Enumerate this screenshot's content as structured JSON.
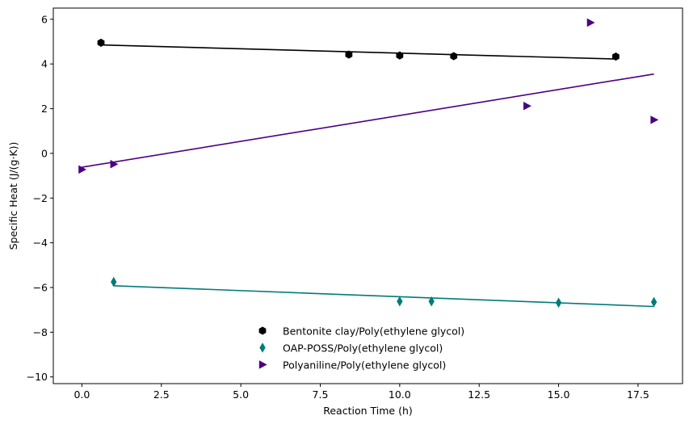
{
  "chart_data": {
    "type": "scatter",
    "title": "",
    "xlabel": "Reaction Time (h)",
    "ylabel": "Specific Heat (J/(g·K))",
    "xlim": [
      -0.9,
      18.9
    ],
    "ylim": [
      -10.3,
      6.5
    ],
    "xticks": [
      0.0,
      2.5,
      5.0,
      7.5,
      10.0,
      12.5,
      15.0,
      17.5
    ],
    "xtick_labels": [
      "0.0",
      "2.5",
      "5.0",
      "7.5",
      "10.0",
      "12.5",
      "15.0",
      "17.5"
    ],
    "yticks": [
      -10,
      -8,
      -6,
      -4,
      -2,
      0,
      2,
      4,
      6
    ],
    "ytick_labels": [
      "−10",
      "−8",
      "−6",
      "−4",
      "−2",
      "0",
      "2",
      "4",
      "6"
    ],
    "grid": false,
    "legend_position": "bottom-center",
    "series": [
      {
        "name": "Bentonite clay/Poly(ethylene glycol)",
        "color": "#000000",
        "marker": "hexagon",
        "points": [
          [
            0.6,
            4.95
          ],
          [
            8.4,
            4.42
          ],
          [
            10.0,
            4.38
          ],
          [
            11.7,
            4.35
          ],
          [
            16.8,
            4.33
          ]
        ],
        "fit": [
          [
            0.6,
            4.85
          ],
          [
            16.8,
            4.22
          ]
        ]
      },
      {
        "name": "OAP-POSS/Poly(ethylene glycol)",
        "color": "#007b7b",
        "marker": "thin-diamond",
        "points": [
          [
            1.0,
            -5.75
          ],
          [
            10.0,
            -6.62
          ],
          [
            11.0,
            -6.62
          ],
          [
            15.0,
            -6.68
          ],
          [
            18.0,
            -6.65
          ]
        ],
        "fit": [
          [
            1.0,
            -5.92
          ],
          [
            18.0,
            -6.85
          ]
        ]
      },
      {
        "name": "Polyaniline/Poly(ethylene glycol)",
        "color": "#4b0082",
        "marker": "triangle-right",
        "points": [
          [
            0.0,
            -0.72
          ],
          [
            1.0,
            -0.48
          ],
          [
            14.0,
            2.12
          ],
          [
            16.0,
            5.85
          ],
          [
            18.0,
            1.5
          ]
        ],
        "fit": [
          [
            0.0,
            -0.62
          ],
          [
            18.0,
            3.55
          ]
        ]
      }
    ]
  }
}
